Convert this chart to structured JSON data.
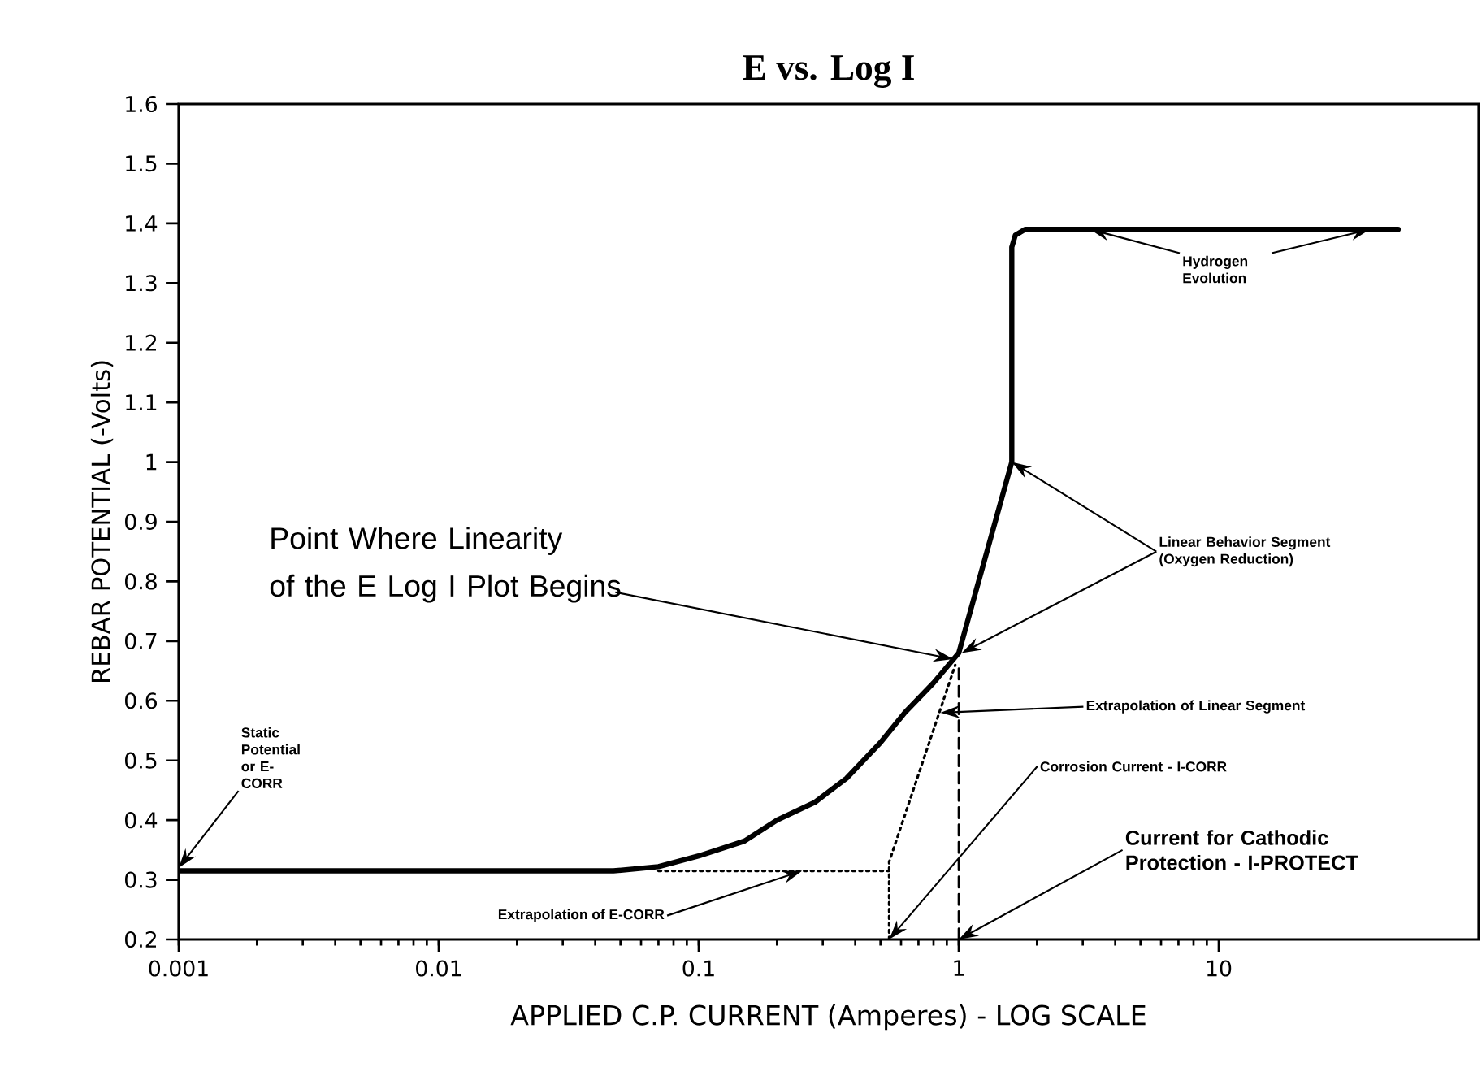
{
  "chart_data": {
    "type": "line",
    "title": "E vs. Log I",
    "xlabel": "APPLIED C.P. CURRENT (Amperes) - LOG SCALE",
    "ylabel": "REBAR POTENTIAL (-Volts)",
    "log": "x",
    "xlim": [
      0.001,
      100
    ],
    "xticks": [
      0.001,
      0.01,
      0.1,
      1,
      10
    ],
    "ylim": [
      0.2,
      1.6
    ],
    "yticks": [
      0.2,
      0.3,
      0.4,
      0.5,
      0.6,
      0.7,
      0.8,
      0.9,
      1,
      1.1,
      1.2,
      1.3,
      1.4,
      1.5,
      1.6
    ],
    "series": [
      {
        "color": "#000000",
        "line_style": "solid",
        "x": [
          0.001,
          0.047,
          0.07,
          0.1,
          0.15,
          0.2,
          0.28,
          0.37,
          0.5,
          0.62,
          0.8,
          1,
          1.6,
          1.6,
          1.65,
          1.8,
          2.16,
          49
        ],
        "values": [
          0.315,
          0.315,
          0.322,
          0.34,
          0.365,
          0.4,
          0.43,
          0.47,
          0.53,
          0.58,
          0.63,
          0.68,
          1.0,
          1.36,
          1.38,
          1.39,
          1.39,
          1.39
        ]
      },
      {
        "color": "#000000",
        "line_style": "dotted",
        "x": [
          0.07,
          0.54
        ],
        "values": [
          0.315,
          0.315
        ]
      },
      {
        "color": "#000000",
        "line_style": "dotted",
        "x": [
          0.54,
          0.54,
          0.97
        ],
        "values": [
          0.2,
          0.33,
          0.66
        ]
      },
      {
        "color": "#000000",
        "line_style": "dashed",
        "x": [
          1,
          1
        ],
        "values": [
          0.2,
          0.66
        ]
      }
    ],
    "annotations": [
      {
        "text": "Static Potential or E-CORR",
        "x": 0.001,
        "y": 0.32
      },
      {
        "text": "Point Where Linearity of the E Log I Plot Begins",
        "x": 0.95,
        "y": 0.67
      },
      {
        "text": "Linear Behavior Segment (Oxygen Reduction)",
        "x": 1.6,
        "y": 1.0
      },
      {
        "text": "Hydrogen Evolution",
        "x": 3.2,
        "y": 1.39
      },
      {
        "text": "Extrapolation of Linear Segment",
        "x": 0.85,
        "y": 0.58
      },
      {
        "text": "Corrosion Current - I-CORR",
        "x": 0.54,
        "y": 0.2
      },
      {
        "text": "Current for Cathodic Protection - I-PROTECT",
        "x": 1,
        "y": 0.2
      },
      {
        "text": "Extrapolation of E-CORR",
        "x": 0.25,
        "y": 0.315
      }
    ]
  }
}
